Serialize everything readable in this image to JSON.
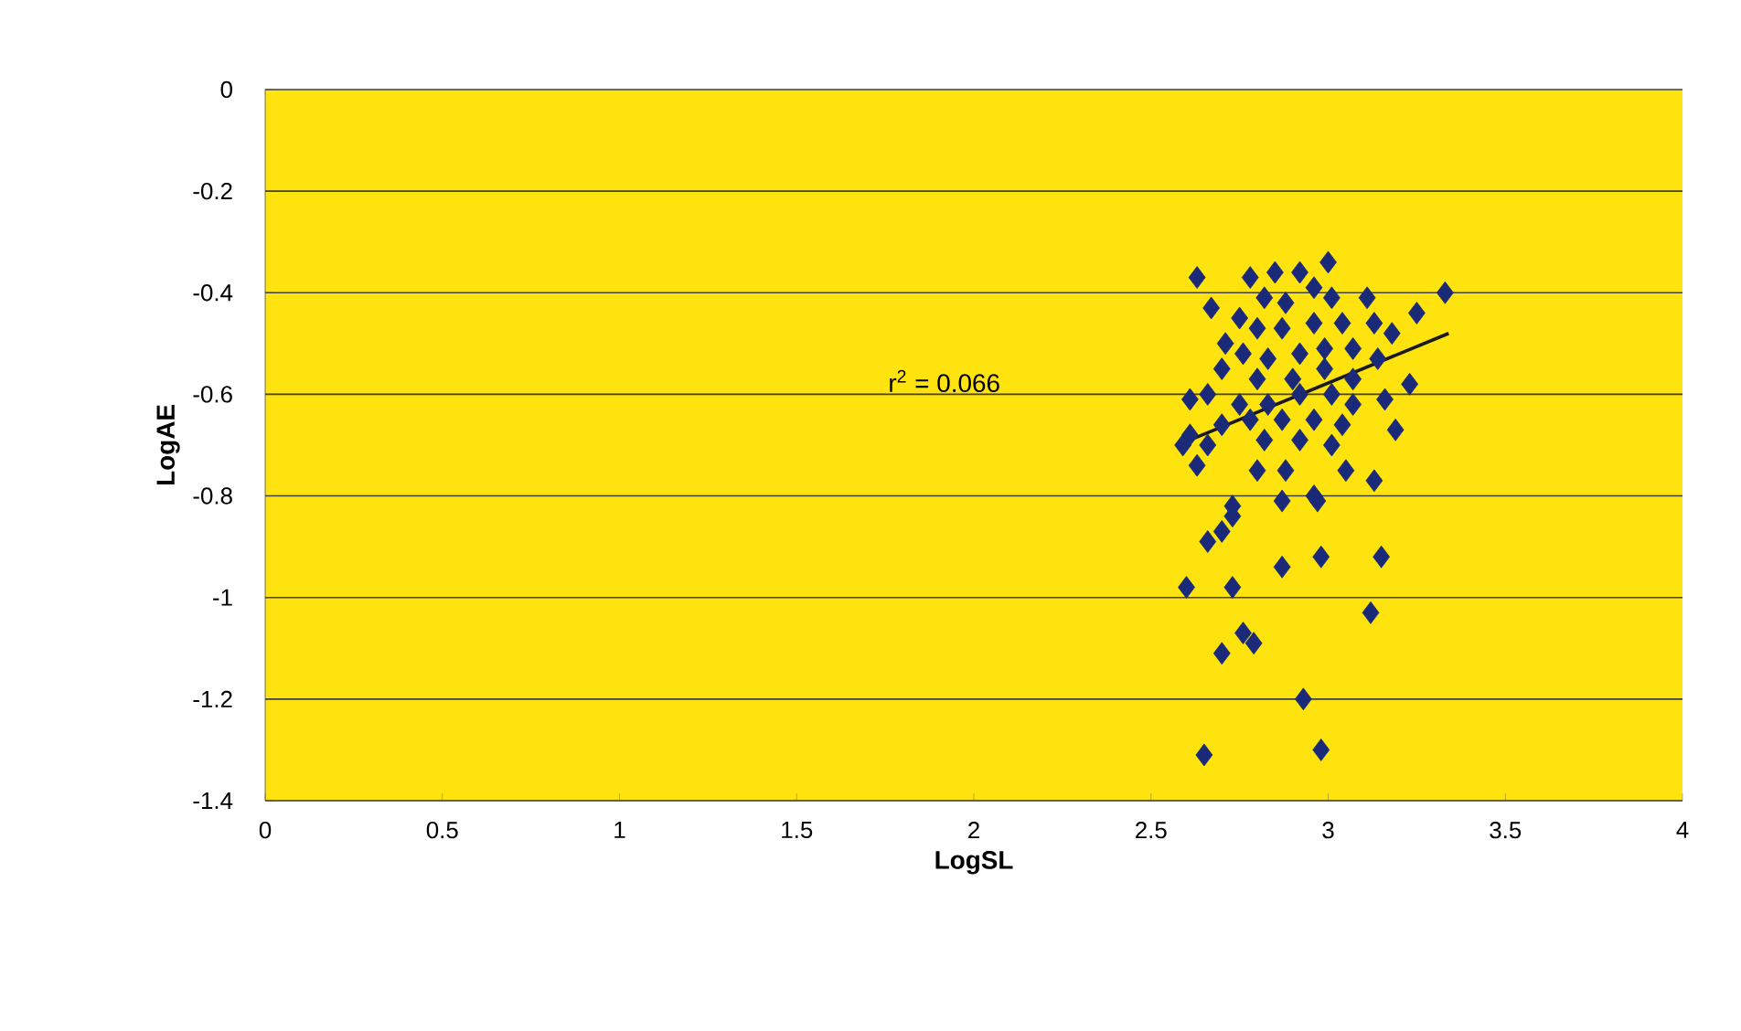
{
  "chart_data": {
    "type": "scatter",
    "xlabel": "LogSL",
    "ylabel": "LogAE",
    "xlim": [
      0,
      4
    ],
    "xticks": [
      0,
      0.5,
      1,
      1.5,
      2,
      2.5,
      3,
      3.5,
      4
    ],
    "ylim": [
      -1.4,
      0
    ],
    "yticks": [
      0,
      -0.2,
      -0.4,
      -0.6,
      -0.8,
      -1,
      -1.2,
      -1.4
    ],
    "grid": "y",
    "marker": "diamond",
    "annotations": [
      "r$^{2}$ = 0.066"
    ],
    "series": [
      {
        "color": "#1b2a78",
        "x": [
          2.65,
          2.98,
          2.93,
          2.7,
          2.76,
          2.79,
          3.12,
          2.6,
          2.73,
          2.87,
          2.98,
          3.15,
          2.7,
          2.66,
          2.73,
          2.87,
          2.97,
          2.63,
          3.0,
          3.33,
          2.67,
          3.25,
          2.71,
          2.61,
          2.59,
          2.63,
          3.23,
          3.19,
          3.16,
          3.13,
          3.05,
          2.96,
          2.8,
          2.88,
          2.73,
          2.78,
          2.85,
          2.92,
          2.96,
          2.82,
          2.88,
          3.01,
          3.11,
          2.75,
          2.8,
          2.87,
          2.96,
          3.04,
          3.13,
          3.18,
          2.76,
          2.83,
          2.92,
          2.99,
          3.07,
          3.14,
          2.7,
          2.8,
          2.9,
          2.99,
          3.07,
          2.66,
          2.75,
          2.83,
          2.92,
          3.01,
          3.07,
          2.78,
          2.87,
          2.96,
          3.04,
          2.7,
          2.66,
          2.82,
          2.92,
          3.01,
          2.61
        ],
        "values": [
          -1.31,
          -1.3,
          -1.2,
          -1.11,
          -1.07,
          -1.09,
          -1.03,
          -0.98,
          -0.98,
          -0.94,
          -0.92,
          -0.92,
          -0.87,
          -0.89,
          -0.84,
          -0.81,
          -0.81,
          -0.37,
          -0.34,
          -0.4,
          -0.43,
          -0.44,
          -0.5,
          -0.61,
          -0.7,
          -0.74,
          -0.58,
          -0.67,
          -0.61,
          -0.77,
          -0.75,
          -0.8,
          -0.75,
          -0.75,
          -0.82,
          -0.37,
          -0.36,
          -0.36,
          -0.39,
          -0.41,
          -0.42,
          -0.41,
          -0.41,
          -0.45,
          -0.47,
          -0.47,
          -0.46,
          -0.46,
          -0.46,
          -0.48,
          -0.52,
          -0.53,
          -0.52,
          -0.51,
          -0.51,
          -0.53,
          -0.55,
          -0.57,
          -0.57,
          -0.55,
          -0.57,
          -0.6,
          -0.62,
          -0.62,
          -0.6,
          -0.6,
          -0.62,
          -0.65,
          -0.65,
          -0.65,
          -0.66,
          -0.66,
          -0.7,
          -0.69,
          -0.69,
          -0.7,
          -0.68
        ]
      },
      {
        "type": "line",
        "color": "#1a1a1a",
        "marker": "none",
        "x": [
          2.61,
          3.34
        ],
        "values": [
          -0.69,
          -0.48
        ]
      }
    ]
  }
}
